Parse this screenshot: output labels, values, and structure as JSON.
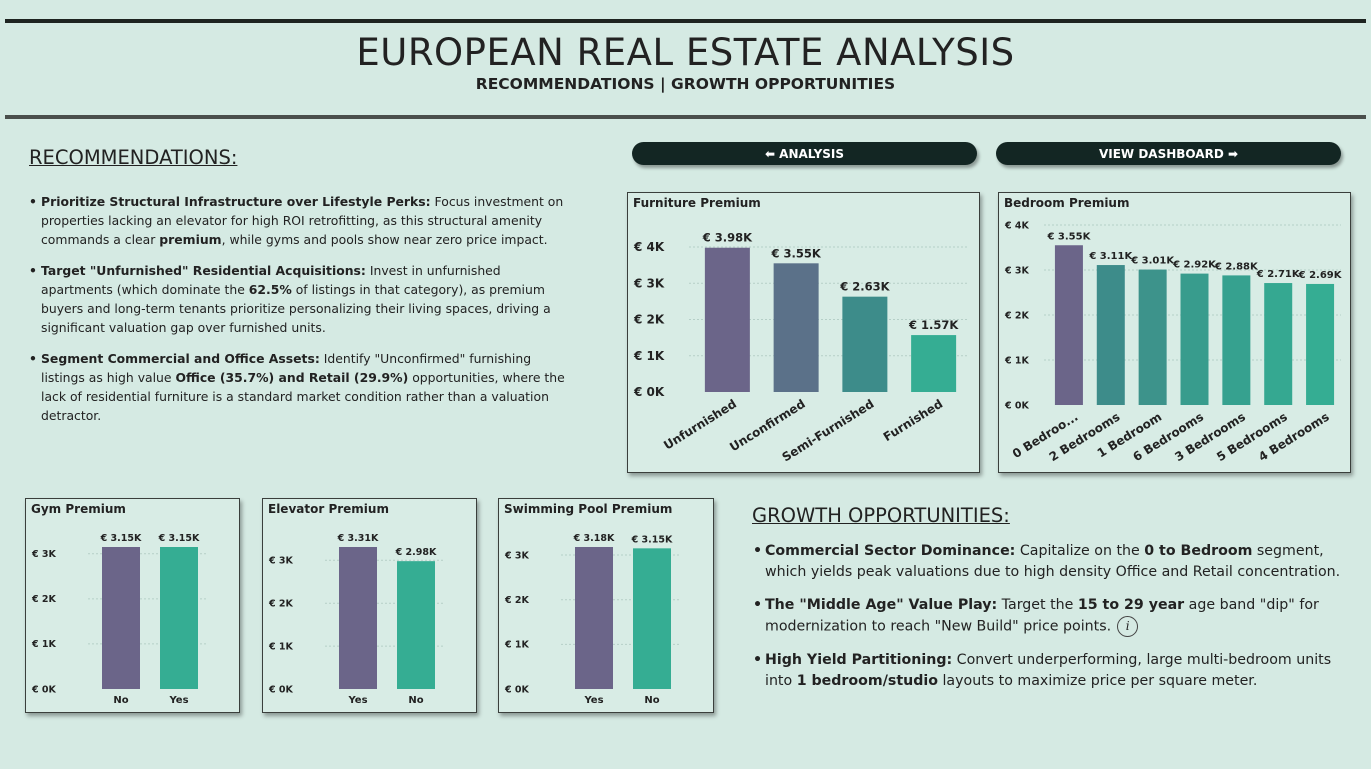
{
  "header": {
    "title": "EUROPEAN REAL ESTATE ANALYSIS",
    "subtitle": "RECOMMENDATIONS | GROWTH OPPORTUNITIES"
  },
  "nav": {
    "analysis_label": "⬅ ANALYSIS",
    "dashboard_label": "VIEW DASHBOARD ➡"
  },
  "recommendations": {
    "title": "RECOMMENDATIONS:",
    "items": [
      {
        "heading": "Prioritize Structural Infrastructure over Lifestyle Perks:",
        "text_1": " Focus investment on properties lacking an elevator for high ROI retrofitting, as this structural amenity commands a clear ",
        "bold_1": "premium",
        "text_2": ", while gyms and pools show near zero price impact."
      },
      {
        "heading": "Target \"Unfurnished\" Residential Acquisitions:",
        "text_1": " Invest in unfurnished apartments (which dominate the ",
        "bold_1": "62.5%",
        "text_2": " of listings in that category), as premium buyers and long-term tenants prioritize personalizing their living spaces, driving a significant valuation gap over furnished units."
      },
      {
        "heading": "Segment Commercial and Office Assets:",
        "text_1": " Identify \"Unconfirmed\" furnishing listings as high value ",
        "bold_1": "Office (35.7%) and Retail (29.9%)",
        "text_2": " opportunities, where the lack of residential furniture is a standard market condition rather than a valuation detractor."
      }
    ]
  },
  "growth": {
    "title": "GROWTH OPPORTUNITIES:",
    "items": [
      {
        "heading": "Commercial Sector Dominance:",
        "text_1": " Capitalize on the ",
        "bold_1": "0 to Bedroom",
        "text_2": " segment, which yields peak valuations due to high density Office and Retail concentration."
      },
      {
        "heading": "The \"Middle Age\" Value Play:",
        "text_1": " Target the ",
        "bold_1": "15 to 29 year",
        "text_2": " age band \"dip\" for modernization to reach \"New Build\" price points.",
        "icon": "info-icon"
      },
      {
        "heading": "High Yield Partitioning:",
        "text_1": " Convert underperforming, large multi-bedroom units into ",
        "bold_1": "1 bedroom/studio",
        "text_2": " layouts to maximize price per square meter."
      }
    ]
  },
  "chart_data": [
    {
      "id": "furniture",
      "type": "bar",
      "title": "Furniture Premium",
      "categories": [
        "Unfurnished",
        "Unconfirmed",
        "Semi-Furnished",
        "Furnished"
      ],
      "values": [
        3980,
        3550,
        2630,
        1570
      ],
      "data_labels": [
        "€ 3.98K",
        "€ 3.55K",
        "€ 2.63K",
        "€ 1.57K"
      ],
      "colors": [
        "#6b6589",
        "#5b7189",
        "#3d8c8a",
        "#35ad93"
      ],
      "ylim": [
        0,
        4000
      ],
      "yticks": [
        0,
        1000,
        2000,
        3000,
        4000
      ],
      "ytick_labels": [
        "€ 0K",
        "€ 1K",
        "€ 2K",
        "€ 3K",
        "€ 4K"
      ],
      "grid": true
    },
    {
      "id": "bedroom",
      "type": "bar",
      "title": "Bedroom Premium",
      "categories": [
        "0 Bedroo...",
        "2 Bedrooms",
        "1 Bedroom",
        "6 Bedrooms",
        "3 Bedrooms",
        "5 Bedrooms",
        "4 Bedrooms"
      ],
      "values": [
        3550,
        3110,
        3010,
        2920,
        2880,
        2710,
        2690
      ],
      "data_labels": [
        "€ 3.55K",
        "€ 3.11K",
        "€ 3.01K",
        "€ 2.92K",
        "€ 2.88K",
        "€ 2.71K",
        "€ 2.69K"
      ],
      "colors": [
        "#6b6589",
        "#3d8c8a",
        "#3d938b",
        "#389c8d",
        "#36a18f",
        "#35a891",
        "#35ad93"
      ],
      "ylim": [
        0,
        4000
      ],
      "yticks": [
        0,
        1000,
        2000,
        3000,
        4000
      ],
      "ytick_labels": [
        "€ 0K",
        "€ 1K",
        "€ 2K",
        "€ 3K",
        "€ 4K"
      ],
      "grid": true
    },
    {
      "id": "gym",
      "type": "bar",
      "title": "Gym Premium",
      "categories": [
        "No",
        "Yes"
      ],
      "values": [
        3150,
        3150
      ],
      "data_labels": [
        "€ 3.15K",
        "€ 3.15K"
      ],
      "colors": [
        "#6b6589",
        "#35ad93"
      ],
      "ylim": [
        0,
        3150
      ],
      "yticks": [
        0,
        1000,
        2000,
        3000
      ],
      "ytick_labels": [
        "€ 0K",
        "€ 1K",
        "€ 2K",
        "€ 3K"
      ],
      "grid": true
    },
    {
      "id": "elevator",
      "type": "bar",
      "title": "Elevator Premium",
      "categories": [
        "Yes",
        "No"
      ],
      "values": [
        3310,
        2980
      ],
      "data_labels": [
        "€ 3.31K",
        "€ 2.98K"
      ],
      "colors": [
        "#6b6589",
        "#35ad93"
      ],
      "ylim": [
        0,
        3310
      ],
      "yticks": [
        0,
        1000,
        2000,
        3000
      ],
      "ytick_labels": [
        "€ 0K",
        "€ 1K",
        "€ 2K",
        "€ 3K"
      ],
      "grid": true
    },
    {
      "id": "pool",
      "type": "bar",
      "title": "Swimming Pool Premium",
      "categories": [
        "Yes",
        "No"
      ],
      "values": [
        3180,
        3150
      ],
      "data_labels": [
        "€ 3.18K",
        "€ 3.15K"
      ],
      "colors": [
        "#6b6589",
        "#35ad93"
      ],
      "ylim": [
        0,
        3180
      ],
      "yticks": [
        0,
        1000,
        2000,
        3000
      ],
      "ytick_labels": [
        "€ 0K",
        "€ 1K",
        "€ 2K",
        "€ 3K"
      ],
      "grid": true
    }
  ]
}
